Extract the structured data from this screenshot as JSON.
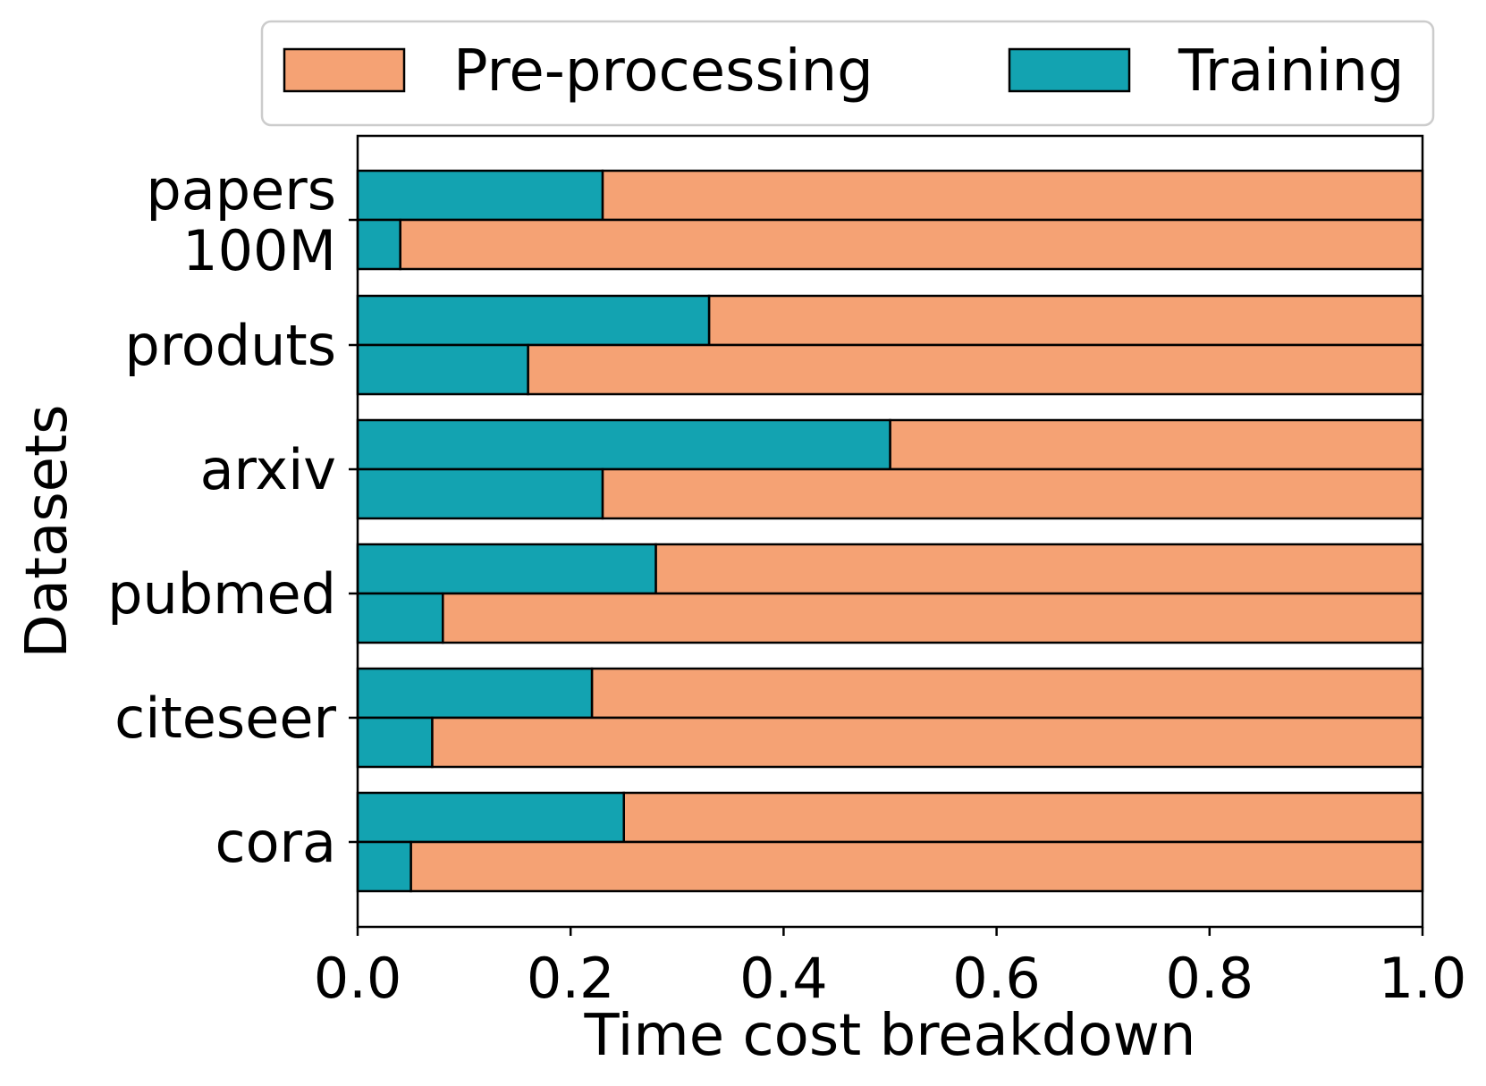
{
  "chart_data": {
    "type": "bar",
    "orientation": "horizontal",
    "stacked": true,
    "title": "",
    "xlabel": "Time cost breakdown",
    "ylabel": "Datasets",
    "xlim": [
      0.0,
      1.0
    ],
    "xticks": [
      "0.0",
      "0.2",
      "0.4",
      "0.6",
      "0.8",
      "1.0"
    ],
    "categories": [
      "papers\n100M",
      "produts",
      "arxiv",
      "pubmed",
      "citeseer",
      "cora"
    ],
    "category_lines": [
      [
        "papers",
        "100M"
      ],
      [
        "produts"
      ],
      [
        "arxiv"
      ],
      [
        "pubmed"
      ],
      [
        "citeseer"
      ],
      [
        "cora"
      ]
    ],
    "bars_per_category": 2,
    "training_upper": [
      0.23,
      0.33,
      0.5,
      0.28,
      0.22,
      0.25
    ],
    "training_lower": [
      0.04,
      0.16,
      0.23,
      0.08,
      0.07,
      0.05
    ],
    "series": [
      {
        "name": "Training",
        "color": "#13a3b1"
      },
      {
        "name": "Pre-processing",
        "color": "#f5a274"
      }
    ],
    "legend": {
      "placement": "top",
      "entries": [
        {
          "label": "Pre-processing",
          "color": "#f5a274"
        },
        {
          "label": "Training",
          "color": "#13a3b1"
        }
      ]
    },
    "grid": false
  }
}
